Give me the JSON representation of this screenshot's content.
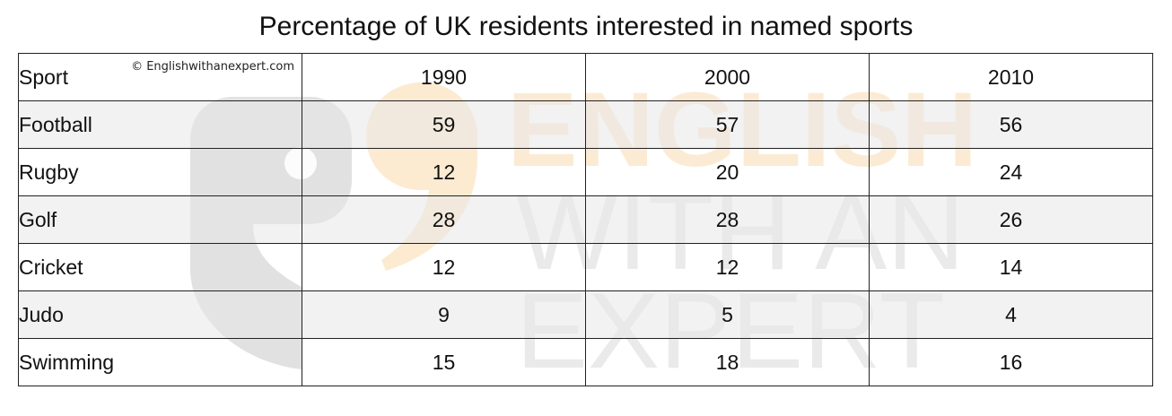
{
  "chart_data": {
    "type": "table",
    "title": "Percentage of UK residents interested in named sports",
    "copyright": "© Englishwithanexpert.com",
    "watermark": [
      "ENGLISH",
      "WITH AN",
      "EXPERT"
    ],
    "header": [
      "Sport",
      "1990",
      "2000",
      "2010"
    ],
    "rows": [
      {
        "sport": "Football",
        "values": [
          "59",
          "57",
          "56"
        ]
      },
      {
        "sport": "Rugby",
        "values": [
          "12",
          "20",
          "24"
        ]
      },
      {
        "sport": "Golf",
        "values": [
          "28",
          "28",
          "26"
        ]
      },
      {
        "sport": "Cricket",
        "values": [
          "12",
          "12",
          "14"
        ]
      },
      {
        "sport": "Judo",
        "values": [
          "9",
          "5",
          "4"
        ]
      },
      {
        "sport": "Swimming",
        "values": [
          "15",
          "18",
          "16"
        ]
      }
    ],
    "colors": {
      "row_shade": "#e7e7e7",
      "watermark_orange": "#fbe3c2",
      "watermark_grey": "#d8d8d8",
      "border": "#222222"
    }
  }
}
